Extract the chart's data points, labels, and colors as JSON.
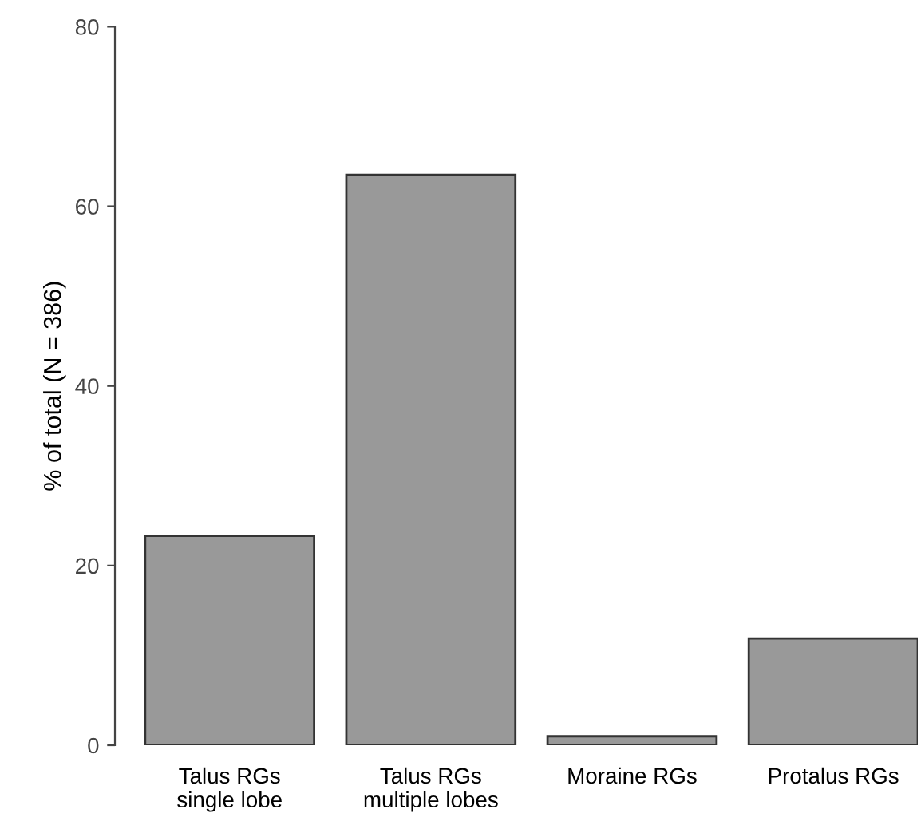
{
  "chart_data": {
    "type": "bar",
    "ylabel": "% of total (N = 386)",
    "categories": [
      "Talus RGs\nsingle lobe",
      "Talus RGs\nmultiple lobes",
      "Moraine RGs",
      "Protalus RGs"
    ],
    "values": [
      23.3,
      63.5,
      1.0,
      11.9
    ],
    "color": "#999999",
    "ylim": [
      0,
      80
    ],
    "yticks": [
      0,
      20,
      40,
      60,
      80
    ],
    "grid": false
  }
}
